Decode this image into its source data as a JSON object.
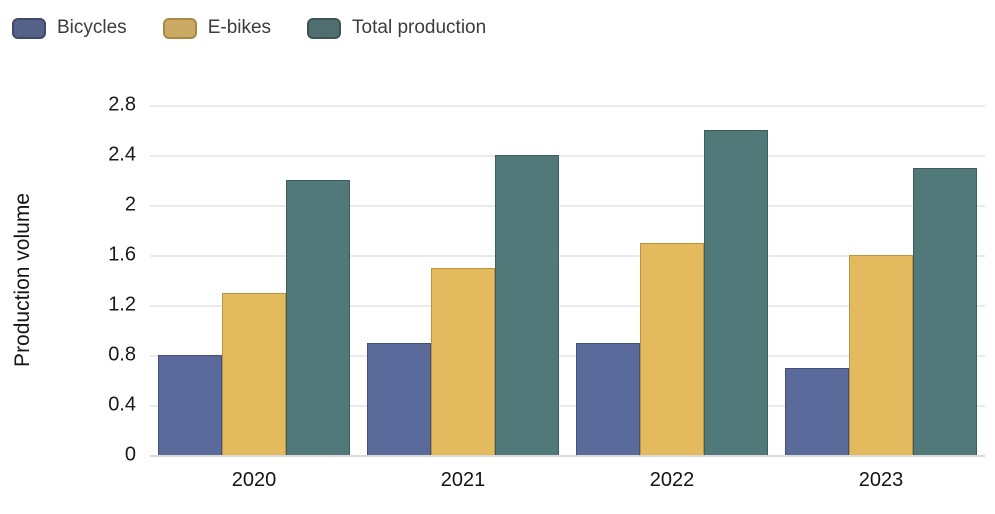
{
  "chart_data": {
    "type": "bar",
    "title": "",
    "xlabel": "",
    "ylabel": "Production volume",
    "categories": [
      "2020",
      "2021",
      "2022",
      "2023"
    ],
    "series": [
      {
        "name": "Bicycles",
        "color": "#5a6b9b",
        "border_color": "#454f79",
        "values": [
          0.8,
          0.9,
          0.9,
          0.7
        ]
      },
      {
        "name": "E-bikes",
        "color": "#e3ba5d",
        "border_color": "#bb9440",
        "values": [
          1.3,
          1.5,
          1.7,
          1.6
        ]
      },
      {
        "name": "Total production",
        "color": "#52797a",
        "border_color": "#3d5c5e",
        "values": [
          2.2,
          2.4,
          2.6,
          2.3
        ]
      }
    ],
    "ylim": [
      0,
      2.8
    ],
    "ytick_labels": [
      "0",
      "0.4",
      "0.8",
      "1.2",
      "1.6",
      "2",
      "2.4",
      "2.8"
    ],
    "grid": true,
    "legend_position": "top-left",
    "background_color": "#ffffff"
  }
}
